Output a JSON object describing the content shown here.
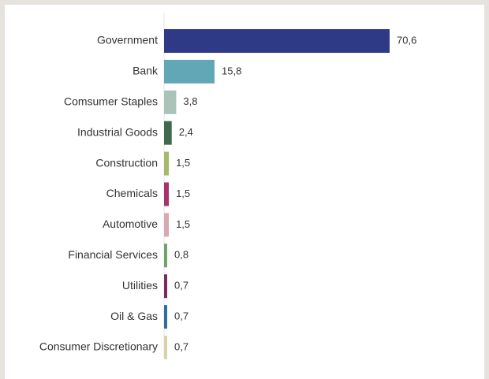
{
  "chart_data": {
    "type": "bar",
    "orientation": "horizontal",
    "categories": [
      "Government",
      "Bank",
      "Comsumer Staples",
      "Industrial Goods",
      "Construction",
      "Chemicals",
      "Automotive",
      "Financial Services",
      "Utilities",
      "Oil & Gas",
      "Consumer Discretionary"
    ],
    "values": [
      70.6,
      15.8,
      3.8,
      2.4,
      1.5,
      1.5,
      1.5,
      0.8,
      0.7,
      0.7,
      0.7
    ],
    "value_labels": [
      "70,6",
      "15,8",
      "3,8",
      "2,4",
      "1,5",
      "1,5",
      "1,5",
      "0,8",
      "0,7",
      "0,7",
      "0,7"
    ],
    "colors": [
      "#2e3a86",
      "#62a7b6",
      "#a9c3b8",
      "#3f6b4c",
      "#a8b86a",
      "#a7336a",
      "#d6aab0",
      "#6ea36a",
      "#7c2a60",
      "#2f6e9e",
      "#d9d2a6"
    ],
    "xlim": [
      0,
      70.6
    ],
    "title": "",
    "xlabel": "",
    "ylabel": "",
    "grid": false,
    "legend": "none"
  }
}
